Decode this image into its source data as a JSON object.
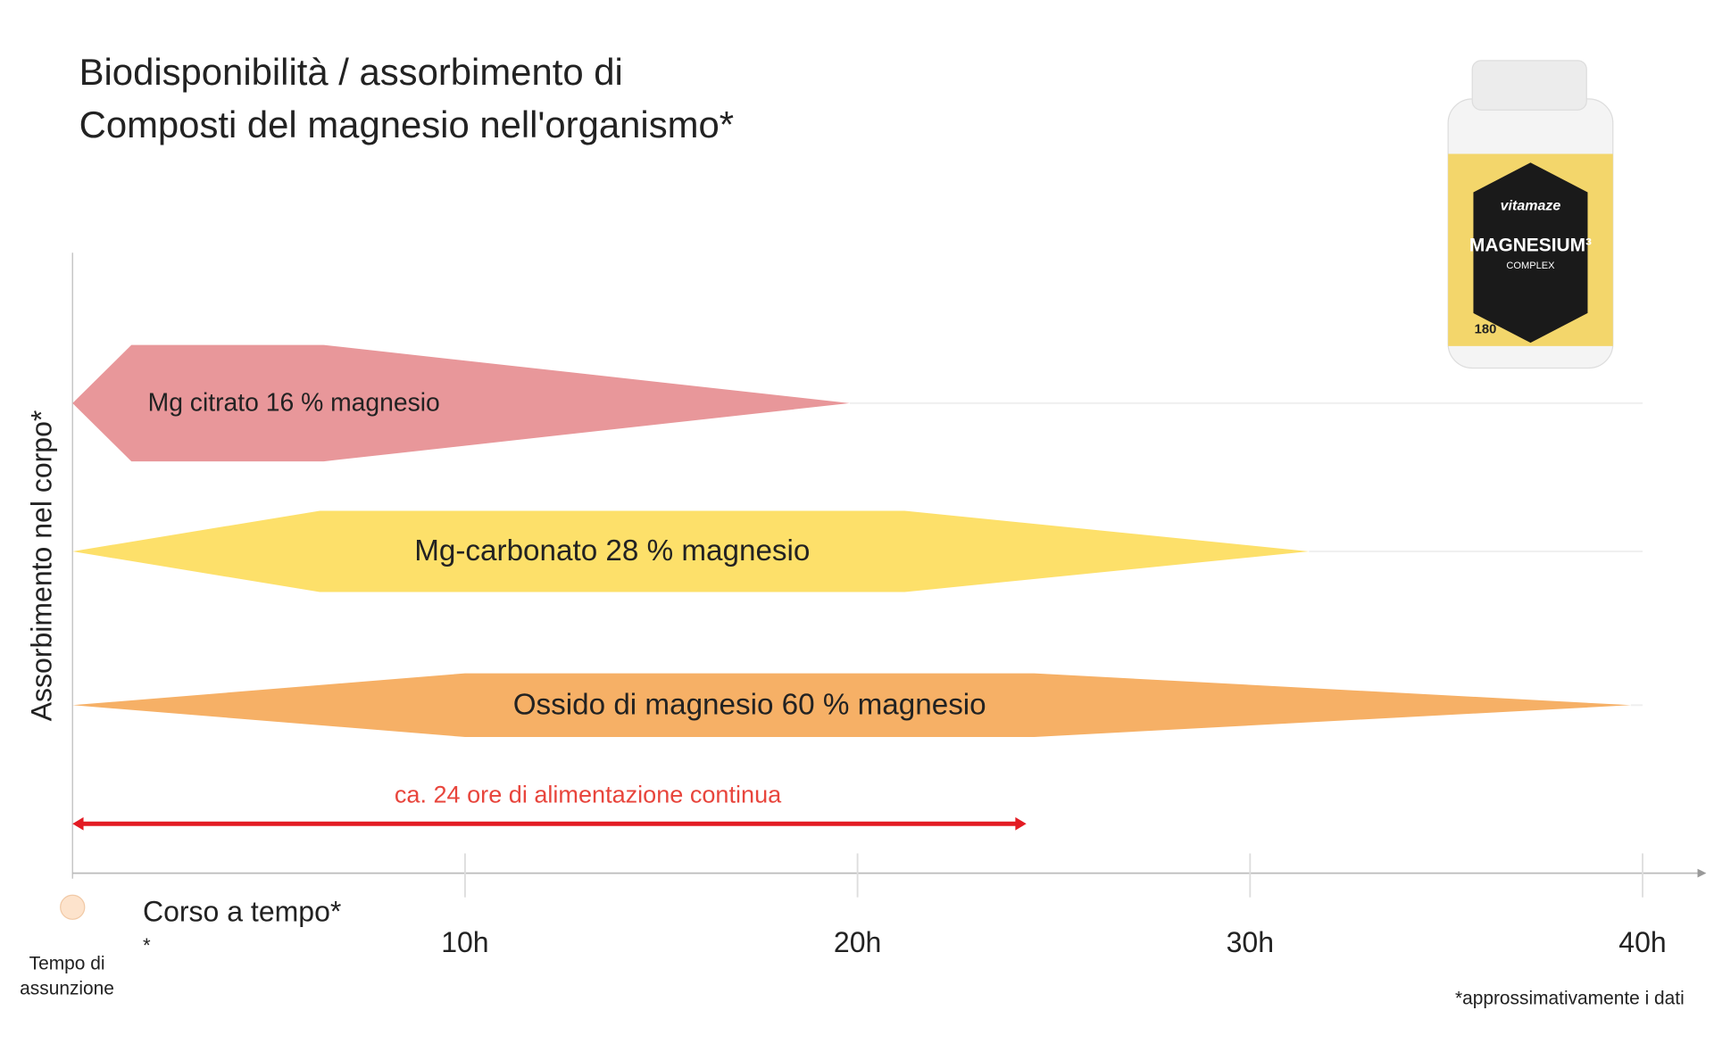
{
  "chart_data": {
    "type": "range-band",
    "title_lines": [
      "Biodisponibilità / assorbimento di",
      "Composti del magnesio nell'organismo*"
    ],
    "y_label": "Assorbimento nel corpo*",
    "x_label": "Corso a tempo*",
    "x_label_note": "*",
    "origin_label": [
      "Tempo di",
      "assunzione"
    ],
    "footnote": "*approssimativamente i dati",
    "xlim": [
      0,
      40
    ],
    "xticks": [
      {
        "value": 10,
        "label": "10h"
      },
      {
        "value": 20,
        "label": "20h"
      },
      {
        "value": 30,
        "label": "30h"
      },
      {
        "value": 40,
        "label": "40h"
      }
    ],
    "series": [
      {
        "name": "Mg citrato 16 % magnesio",
        "color": "#e8979a",
        "start": 0,
        "plateau": [
          1.5,
          6.4
        ],
        "end": 19.8
      },
      {
        "name": "Mg-carbonato 28 % magnesio",
        "color": "#fde06a",
        "start": 0,
        "plateau": [
          6.3,
          21.2
        ],
        "end": 31.5
      },
      {
        "name": "Ossido di magnesio 60 % magnesio",
        "color": "#f6b066",
        "start": 0,
        "plateau": [
          10,
          24.5
        ],
        "end": 39.7
      }
    ],
    "span": {
      "label": "ca. 24 ore di alimentazione continua",
      "start": 0,
      "end": 24.3,
      "color": "#e31b23"
    },
    "product": {
      "brand": "vitamaze",
      "name": "MAGNESIUM³",
      "sub": "COMPLEX",
      "count": "180"
    }
  }
}
